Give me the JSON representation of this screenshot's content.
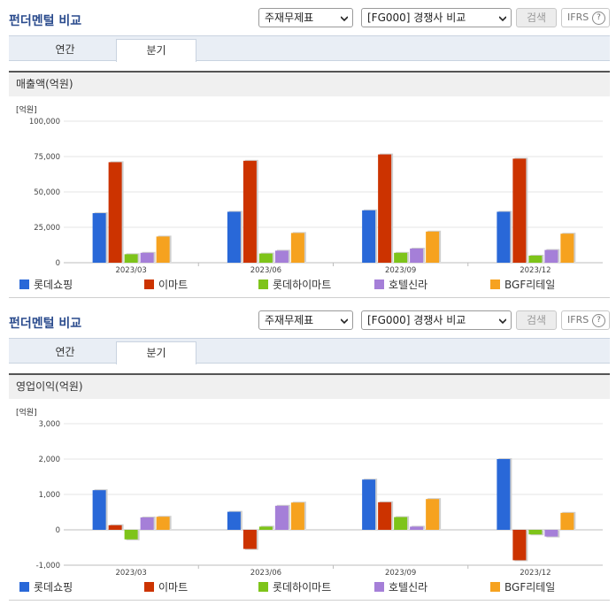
{
  "panels": [
    {
      "title": "펀더멘털 비교",
      "select1": "주재무제표",
      "select2": "[FG000] 경쟁사 비교",
      "search_label": "검색",
      "ifrs_label": "IFRS",
      "ifrs_help": "?",
      "tabs": [
        "연간",
        "분기"
      ],
      "active_tab": "분기",
      "section_title": "매출액(억원)",
      "unit": "[억원]"
    },
    {
      "title": "펀더멘털 비교",
      "select1": "주재무제표",
      "select2": "[FG000] 경쟁사 비교",
      "search_label": "검색",
      "ifrs_label": "IFRS",
      "ifrs_help": "?",
      "tabs": [
        "연간",
        "분기"
      ],
      "active_tab": "분기",
      "section_title": "영업이익(억원)",
      "unit": "[억원]"
    }
  ],
  "chart_data": [
    {
      "type": "bar",
      "title": "매출액(억원)",
      "ylabel": "[억원]",
      "categories": [
        "2023/03",
        "2023/06",
        "2023/09",
        "2023/12"
      ],
      "ylim": [
        0,
        100000
      ],
      "yticks": [
        "100,000",
        "75,000",
        "50,000",
        "25,000",
        "0"
      ],
      "ytick_values": [
        100000,
        75000,
        50000,
        25000,
        0
      ],
      "grid": true,
      "legend": "bottom",
      "series": [
        {
          "name": "롯데쇼핑",
          "color": "#2968d8",
          "values": [
            35000,
            36000,
            37000,
            36000
          ]
        },
        {
          "name": "이마트",
          "color": "#cc3300",
          "values": [
            71000,
            72000,
            76500,
            73500
          ]
        },
        {
          "name": "롯데하이마트",
          "color": "#7ec41a",
          "values": [
            6000,
            6500,
            7000,
            5000
          ]
        },
        {
          "name": "호텔신라",
          "color": "#a57fd8",
          "values": [
            7000,
            8500,
            10000,
            9000
          ]
        },
        {
          "name": "BGF리테일",
          "color": "#f6a21f",
          "values": [
            18500,
            21000,
            22000,
            20500
          ]
        }
      ]
    },
    {
      "type": "bar",
      "title": "영업이익(억원)",
      "ylabel": "[억원]",
      "categories": [
        "2023/03",
        "2023/06",
        "2023/09",
        "2023/12"
      ],
      "ylim": [
        -1000,
        3000
      ],
      "yticks": [
        "3,000",
        "2,000",
        "1,000",
        "0",
        "-1,000"
      ],
      "ytick_values": [
        3000,
        2000,
        1000,
        0,
        -1000
      ],
      "grid": true,
      "legend": "bottom",
      "series": [
        {
          "name": "롯데쇼핑",
          "color": "#2968d8",
          "values": [
            1120,
            510,
            1420,
            2000
          ]
        },
        {
          "name": "이마트",
          "color": "#cc3300",
          "values": [
            130,
            -540,
            780,
            -860
          ]
        },
        {
          "name": "롯데하이마트",
          "color": "#7ec41a",
          "values": [
            -270,
            90,
            360,
            -130
          ]
        },
        {
          "name": "호텔신라",
          "color": "#a57fd8",
          "values": [
            350,
            680,
            90,
            -190
          ]
        },
        {
          "name": "BGF리테일",
          "color": "#f6a21f",
          "values": [
            370,
            770,
            870,
            480
          ]
        }
      ]
    }
  ]
}
